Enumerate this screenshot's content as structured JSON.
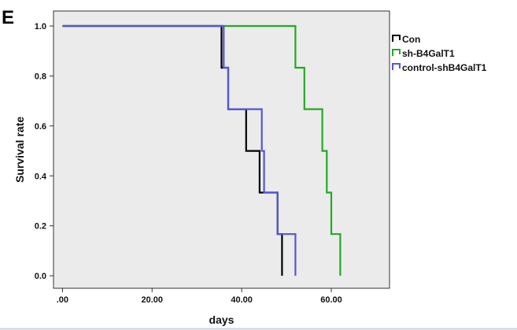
{
  "panel_label": "E",
  "chart_data": {
    "type": "line",
    "subtype": "kaplan-meier-step",
    "title": "",
    "xlabel": "days",
    "ylabel": "Survival rate",
    "xlim": [
      -2,
      73
    ],
    "ylim": [
      -0.05,
      1.06
    ],
    "x_ticks": [
      0,
      20,
      40,
      60
    ],
    "x_tick_labels": [
      ".00",
      "20.00",
      "40.00",
      "60.00"
    ],
    "y_ticks": [
      0.0,
      0.2,
      0.4,
      0.6,
      0.8,
      1.0
    ],
    "y_tick_labels": [
      "0.0",
      "0.2",
      "0.4",
      "0.6",
      "0.8",
      "1.0"
    ],
    "grid": false,
    "legend_position": "right",
    "plot_background": "#ebebeb",
    "series": [
      {
        "name": "Con",
        "color": "#000000",
        "x": [
          0,
          35.5,
          35.5,
          37,
          37,
          41,
          41,
          44,
          44,
          48,
          48,
          49,
          49
        ],
        "y": [
          1.0,
          1.0,
          0.833,
          0.833,
          0.667,
          0.667,
          0.5,
          0.5,
          0.333,
          0.333,
          0.167,
          0.167,
          0.0
        ]
      },
      {
        "name": "sh-B4GalT1",
        "color": "#22aa22",
        "x": [
          0,
          52,
          52,
          54,
          54,
          58,
          58,
          59,
          59,
          60,
          60,
          62,
          62
        ],
        "y": [
          1.0,
          1.0,
          0.833,
          0.833,
          0.667,
          0.667,
          0.5,
          0.5,
          0.333,
          0.333,
          0.167,
          0.167,
          0.0
        ]
      },
      {
        "name": "control-shB4GalT1",
        "color": "#5555dd",
        "x": [
          0,
          36,
          36,
          37,
          37,
          44.5,
          44.5,
          45,
          45,
          48,
          48,
          52,
          52
        ],
        "y": [
          1.0,
          1.0,
          0.833,
          0.833,
          0.667,
          0.667,
          0.5,
          0.5,
          0.333,
          0.333,
          0.167,
          0.167,
          0.0
        ]
      }
    ]
  }
}
